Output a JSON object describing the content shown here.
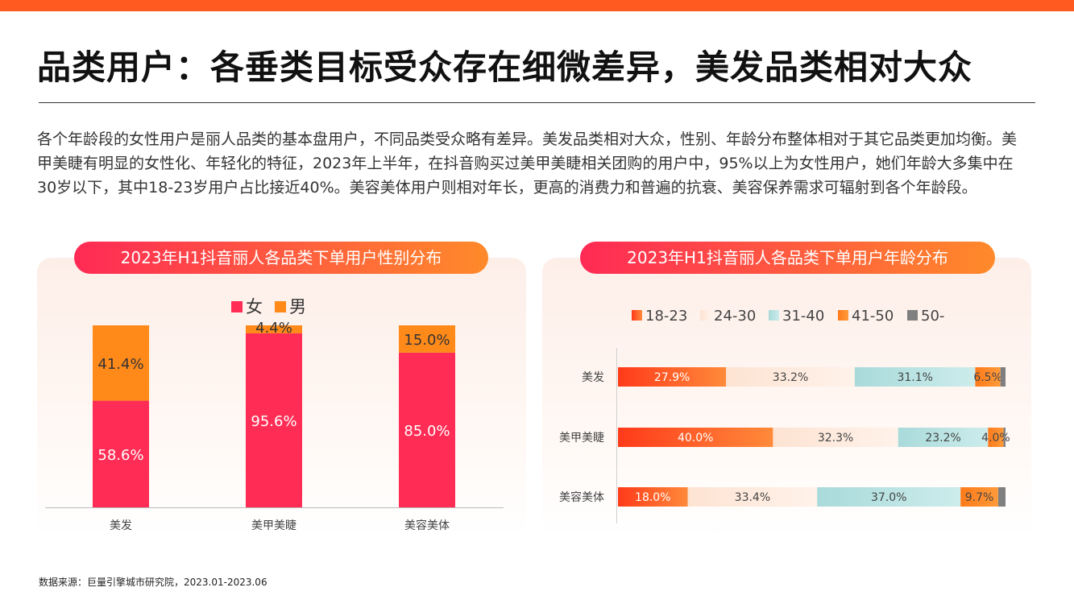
{
  "header": {
    "title": "品类用户：各垂类目标受众存在细微差异，美发品类相对大众",
    "paragraph": "各个年龄段的女性用户是丽人品类的基本盘用户，不同品类受众略有差异。美发品类相对大众，性别、年龄分布整体相对于其它品类更加均衡。美甲美睫有明显的女性化、年轻化的特征，2023年上半年，在抖音购买过美甲美睫相关团购的用户中，95%以上为女性用户，她们年龄大多集中在30岁以下，其中18-23岁用户占比接近40%。美容美体用户则相对年长，更高的消费力和普遍的抗衰、美容保养需求可辐射到各个年龄段。"
  },
  "colors": {
    "accent": "#ff5a1f",
    "female": "#ff2d55",
    "male": "#ff8a1a",
    "age_18_23": "#ff5a1f",
    "age_24_30": "#fde3d2",
    "age_31_40": "#b9e2e2",
    "age_41_50": "#ff8a1a",
    "age_50_plus": "#7f7f7f"
  },
  "chart_data": [
    {
      "type": "bar",
      "stacked": true,
      "percent_stacked": true,
      "title": "2023年H1抖音丽人各品类下单用户性别分布",
      "categories": [
        "美发",
        "美甲美睫",
        "美容美体"
      ],
      "series": [
        {
          "name": "女",
          "values": [
            58.6,
            95.6,
            85.0
          ],
          "labels": [
            "58.6%",
            "95.6%",
            "85.0%"
          ]
        },
        {
          "name": "男",
          "values": [
            41.4,
            4.4,
            15.0
          ],
          "labels": [
            "41.4%",
            "4.4%",
            "15.0%"
          ]
        }
      ],
      "legend_position": "top",
      "grid": false
    },
    {
      "type": "bar",
      "orientation": "horizontal",
      "stacked": true,
      "percent_stacked": true,
      "title": "2023年H1抖音丽人各品类下单用户年龄分布",
      "categories": [
        "美发",
        "美甲美睫",
        "美容美体"
      ],
      "series": [
        {
          "name": "18-23",
          "values": [
            27.9,
            40.0,
            18.0
          ],
          "labels": [
            "27.9%",
            "40.0%",
            "18.0%"
          ]
        },
        {
          "name": "24-30",
          "values": [
            33.2,
            32.3,
            33.4
          ],
          "labels": [
            "33.2%",
            "32.3%",
            "33.4%"
          ]
        },
        {
          "name": "31-40",
          "values": [
            31.1,
            23.2,
            37.0
          ],
          "labels": [
            "31.1%",
            "23.2%",
            "37.0%"
          ]
        },
        {
          "name": "41-50",
          "values": [
            6.5,
            4.0,
            9.7
          ],
          "labels": [
            "6.5%",
            "4.0%",
            "9.7%"
          ]
        },
        {
          "name": "50-",
          "values": [
            1.3,
            0.5,
            1.9
          ],
          "labels": [
            "",
            "",
            ""
          ]
        }
      ],
      "legend_position": "top",
      "grid": false
    }
  ],
  "footer": {
    "source": "数据来源：巨量引擎城市研究院，2023.01-2023.06"
  }
}
